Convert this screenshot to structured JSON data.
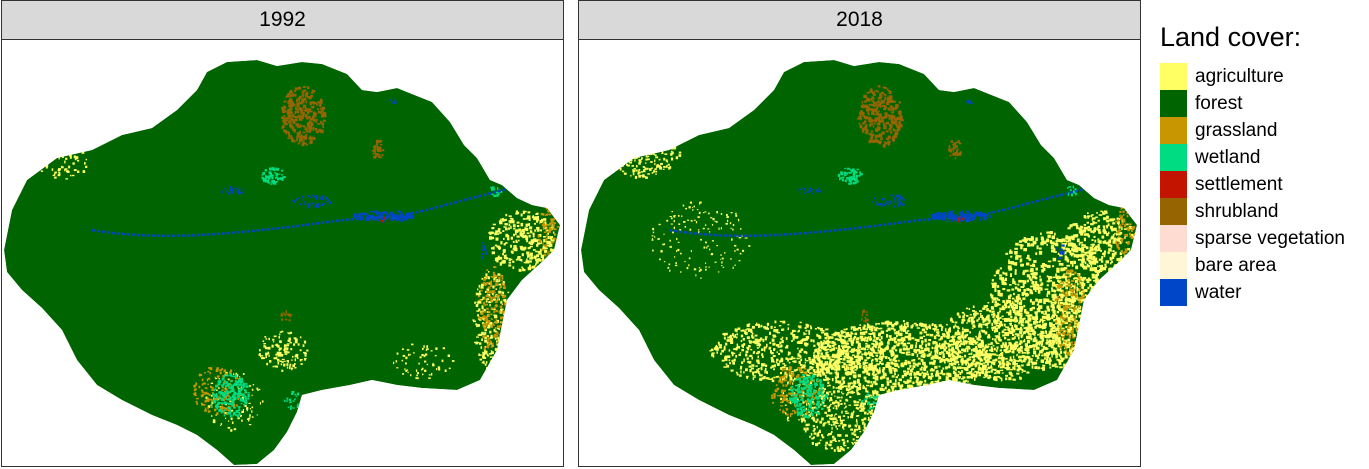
{
  "panels": [
    {
      "year": "1992"
    },
    {
      "year": "2018"
    }
  ],
  "legend": {
    "title": "Land cover:",
    "items": [
      {
        "label": "agriculture",
        "color": "#ffff64"
      },
      {
        "label": "forest",
        "color": "#006400"
      },
      {
        "label": "grassland",
        "color": "#c89600"
      },
      {
        "label": "wetland",
        "color": "#00dc82"
      },
      {
        "label": "settlement",
        "color": "#c31400"
      },
      {
        "label": "shrubland",
        "color": "#966400"
      },
      {
        "label": "sparse vegetation",
        "color": "#ffdcd2"
      },
      {
        "label": "bare area",
        "color": "#fff5d7"
      },
      {
        "label": "water",
        "color": "#0046c8"
      }
    ]
  }
}
